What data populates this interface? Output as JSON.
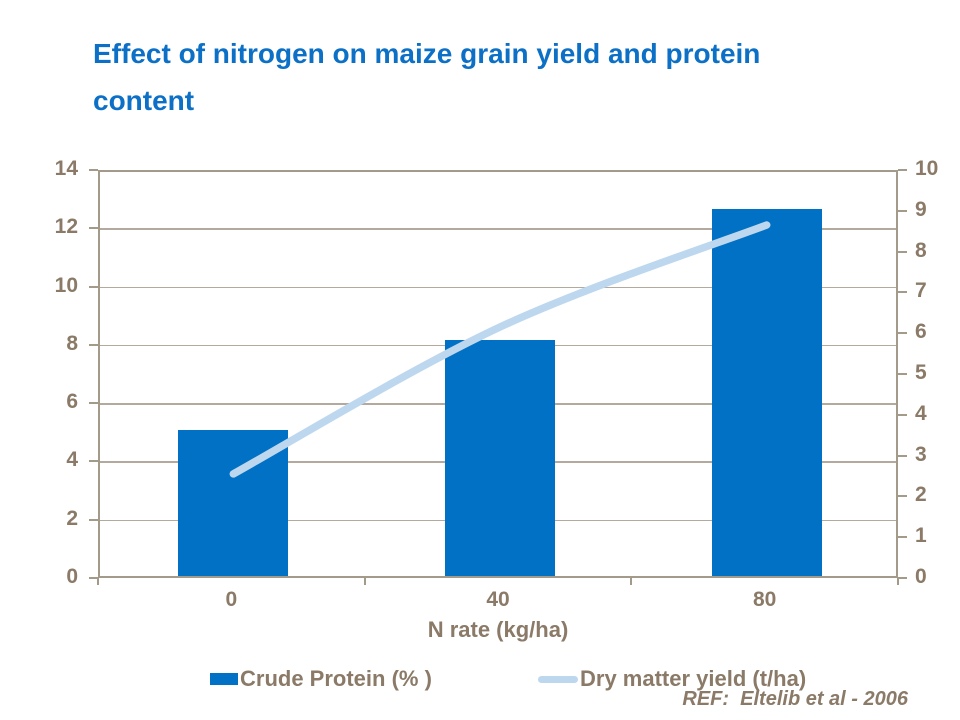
{
  "title": "Effect of nitrogen on maize grain yield and protein content",
  "ref_text": "REF:  Eltelib et al - 2006",
  "colors": {
    "title_blue": "#0C70C6",
    "bar_blue": "#0071C5",
    "line_light_blue": "#BDD7EE",
    "axis_text_brown": "#8A7A67",
    "frame_taupe": "#A49A8A",
    "gridline": "#B3A99C"
  },
  "chart_data": {
    "type": "combo",
    "categories": [
      "0",
      "40",
      "80"
    ],
    "xlabel": "N rate (kg/ha)",
    "series": [
      {
        "name": "Crude Protein (% )",
        "type": "bar",
        "axis": "left",
        "values": [
          5.0,
          8.1,
          12.6
        ]
      },
      {
        "name": "Dry matter yield (t/ha)",
        "type": "line",
        "axis": "right",
        "values": [
          2.6,
          6.2,
          8.7
        ]
      }
    ],
    "left_axis": {
      "min": 0,
      "max": 14,
      "step": 2
    },
    "right_axis": {
      "min": 0,
      "max": 10,
      "step": 1
    },
    "grid": true,
    "legend_position": "bottom"
  }
}
